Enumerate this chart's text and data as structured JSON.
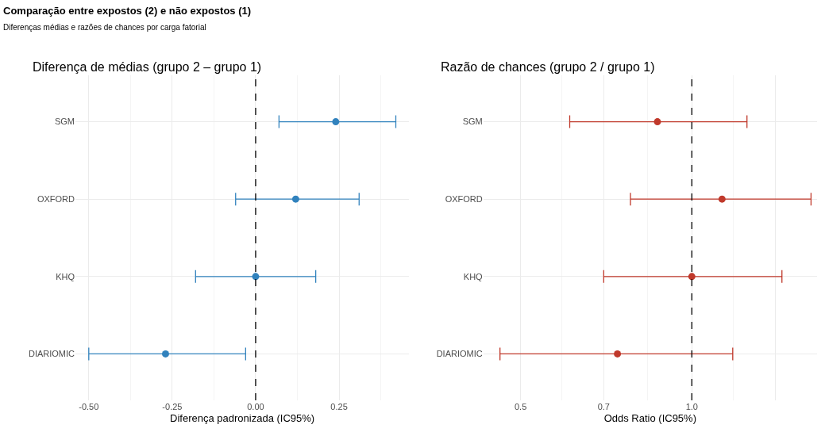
{
  "chart_data": [
    {
      "type": "other",
      "title": "Comparação entre expostos (2) e não expostos (1)",
      "subtitle": "Diferenças médias e razões de chances por carga fatorial"
    },
    {
      "type": "scatter",
      "title": "Diferença de médias (grupo 2 – grupo 1)",
      "xlabel": "Diferença padronizada (IC95%)",
      "orientation": "horizontal",
      "categories": [
        "SGM",
        "OXFORD",
        "KHQ",
        "DIARIOMIC"
      ],
      "series": [
        {
          "color": "#3182bd",
          "values": [
            0.24,
            0.12,
            0.0,
            -0.27
          ],
          "errors": [
            [
              0.07,
              0.42
            ],
            [
              -0.06,
              0.31
            ],
            [
              -0.18,
              0.18
            ],
            [
              -0.5,
              -0.03
            ]
          ]
        }
      ],
      "xlim": [
        -0.54,
        0.46
      ],
      "xticks": [
        {
          "value": -0.5,
          "label": "-0.50"
        },
        {
          "value": -0.25,
          "label": "-0.25"
        },
        {
          "value": 0,
          "label": "0.00"
        },
        {
          "value": 0.25,
          "label": "0.25"
        }
      ],
      "ref_lines": [
        {
          "axis": "x",
          "value": 0,
          "color": "#000000",
          "line_style": "dashed"
        }
      ],
      "grid": true,
      "marker": "circle"
    },
    {
      "type": "scatter",
      "title": "Razão de chances (grupo 2 / grupo 1)",
      "xlabel": "Odds Ratio (IC95%)",
      "orientation": "horizontal",
      "categories": [
        "SGM",
        "OXFORD",
        "KHQ",
        "DIARIOMIC"
      ],
      "series": [
        {
          "color": "#c0392b",
          "values": [
            0.87,
            1.13,
            1.0,
            0.74
          ],
          "errors": [
            [
              0.61,
              1.25
            ],
            [
              0.78,
              1.62
            ],
            [
              0.7,
              1.44
            ],
            [
              0.46,
              1.18
            ]
          ]
        }
      ],
      "log": "x",
      "xlim": [
        0.43,
        1.66
      ],
      "xticks": [
        0.5,
        0.7,
        {
          "value": 1,
          "label": "1.0"
        },
        {
          "value": 1.4,
          "label": null
        }
      ],
      "ref_lines": [
        {
          "axis": "x",
          "value": 1,
          "color": "#000000",
          "line_style": "dashed"
        }
      ],
      "grid": true,
      "marker": "circle"
    }
  ]
}
